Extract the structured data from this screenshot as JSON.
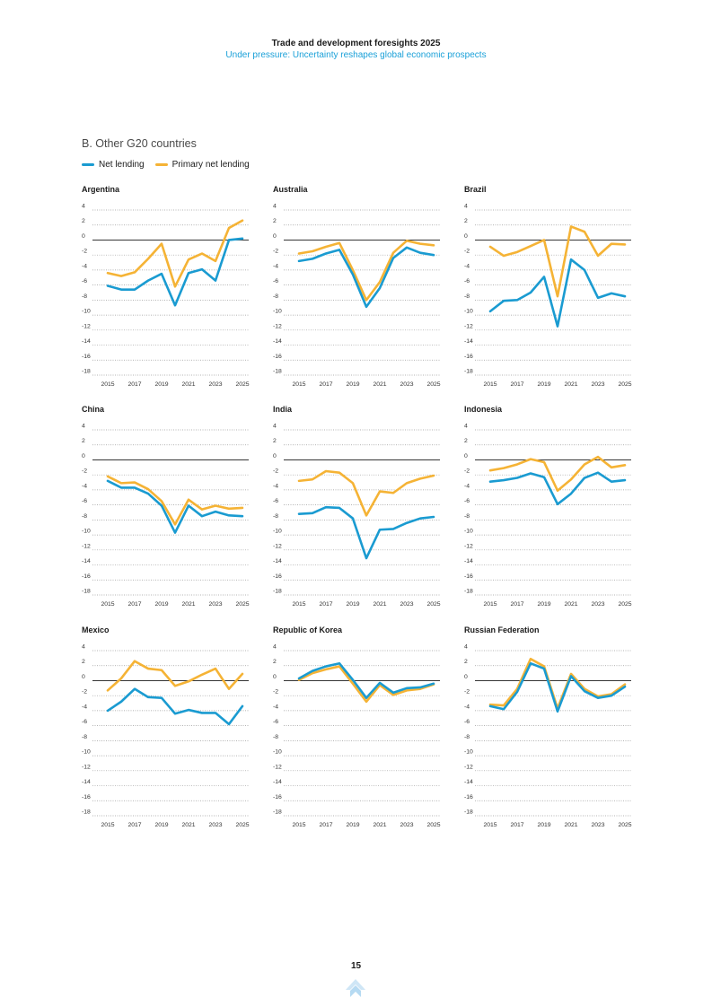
{
  "header": {
    "title": "Trade and development foresights 2025",
    "subtitle": "Under pressure: Uncertainty reshapes global economic prospects"
  },
  "section_title": "B. Other G20 countries",
  "legend": [
    {
      "label": "Net lending",
      "color": "#1a9bd1"
    },
    {
      "label": "Primary net lending",
      "color": "#f5b335"
    }
  ],
  "page_number": "15",
  "chart_data": [
    {
      "type": "line",
      "title": "Argentina",
      "x": [
        2015,
        2016,
        2017,
        2018,
        2019,
        2020,
        2021,
        2022,
        2023,
        2024,
        2025
      ],
      "x_tick_labels": [
        "2015",
        "2017",
        "2019",
        "2021",
        "2023",
        "2025"
      ],
      "y_tick_labels": [
        "4",
        "2",
        "0",
        "-2",
        "-4",
        "-6",
        "-8",
        "-10",
        "-12",
        "-14",
        "-16",
        "-18"
      ],
      "ylim": [
        -18,
        4
      ],
      "grid": true,
      "series": [
        {
          "name": "Net lending",
          "values": [
            -6.1,
            -6.6,
            -6.6,
            -5.4,
            -4.5,
            -8.7,
            -4.4,
            -3.9,
            -5.4,
            0.0,
            0.2
          ]
        },
        {
          "name": "Primary net lending",
          "values": [
            -4.4,
            -4.8,
            -4.3,
            -2.5,
            -0.5,
            -6.2,
            -2.6,
            -1.8,
            -2.8,
            1.6,
            2.6
          ]
        }
      ]
    },
    {
      "type": "line",
      "title": "Australia",
      "x": [
        2015,
        2016,
        2017,
        2018,
        2019,
        2020,
        2021,
        2022,
        2023,
        2024,
        2025
      ],
      "x_tick_labels": [
        "2015",
        "2017",
        "2019",
        "2021",
        "2023",
        "2025"
      ],
      "y_tick_labels": [
        "4",
        "2",
        "0",
        "-2",
        "-4",
        "-6",
        "-8",
        "-10",
        "-12",
        "-14",
        "-16",
        "-18"
      ],
      "ylim": [
        -18,
        4
      ],
      "grid": true,
      "series": [
        {
          "name": "Net lending",
          "values": [
            -2.8,
            -2.5,
            -1.8,
            -1.3,
            -4.6,
            -8.9,
            -6.4,
            -2.4,
            -1.0,
            -1.7,
            -2.0
          ]
        },
        {
          "name": "Primary net lending",
          "values": [
            -1.8,
            -1.5,
            -0.9,
            -0.4,
            -4.0,
            -8.0,
            -5.6,
            -1.7,
            -0.1,
            -0.5,
            -0.7
          ]
        }
      ]
    },
    {
      "type": "line",
      "title": "Brazil",
      "x": [
        2015,
        2016,
        2017,
        2018,
        2019,
        2020,
        2021,
        2022,
        2023,
        2024,
        2025
      ],
      "x_tick_labels": [
        "2015",
        "2017",
        "2019",
        "2021",
        "2023",
        "2025"
      ],
      "y_tick_labels": [
        "4",
        "2",
        "0",
        "-2",
        "-4",
        "-6",
        "-8",
        "-10",
        "-12",
        "-14",
        "-16",
        "-18"
      ],
      "ylim": [
        -18,
        4
      ],
      "grid": true,
      "series": [
        {
          "name": "Net lending",
          "values": [
            -9.5,
            -8.1,
            -8.0,
            -7.0,
            -4.9,
            -11.5,
            -2.6,
            -4.0,
            -7.7,
            -7.1,
            -7.5
          ]
        },
        {
          "name": "Primary net lending",
          "values": [
            -0.9,
            -2.1,
            -1.6,
            -0.8,
            0.0,
            -7.5,
            1.8,
            1.1,
            -2.1,
            -0.5,
            -0.6
          ]
        }
      ]
    },
    {
      "type": "line",
      "title": "China",
      "x": [
        2015,
        2016,
        2017,
        2018,
        2019,
        2020,
        2021,
        2022,
        2023,
        2024,
        2025
      ],
      "x_tick_labels": [
        "2015",
        "2017",
        "2019",
        "2021",
        "2023",
        "2025"
      ],
      "y_tick_labels": [
        "4",
        "2",
        "0",
        "-2",
        "-4",
        "-6",
        "-8",
        "-10",
        "-12",
        "-14",
        "-16",
        "-18"
      ],
      "ylim": [
        -18,
        4
      ],
      "grid": true,
      "series": [
        {
          "name": "Net lending",
          "values": [
            -2.8,
            -3.7,
            -3.7,
            -4.5,
            -6.1,
            -9.7,
            -6.1,
            -7.5,
            -6.9,
            -7.4,
            -7.5
          ]
        },
        {
          "name": "Primary net lending",
          "values": [
            -2.2,
            -3.1,
            -3.0,
            -3.9,
            -5.5,
            -8.6,
            -5.3,
            -6.6,
            -6.1,
            -6.5,
            -6.4
          ]
        }
      ]
    },
    {
      "type": "line",
      "title": "India",
      "x": [
        2015,
        2016,
        2017,
        2018,
        2019,
        2020,
        2021,
        2022,
        2023,
        2024,
        2025
      ],
      "x_tick_labels": [
        "2015",
        "2017",
        "2019",
        "2021",
        "2023",
        "2025"
      ],
      "y_tick_labels": [
        "4",
        "2",
        "0",
        "-2",
        "-4",
        "-6",
        "-8",
        "-10",
        "-12",
        "-14",
        "-16",
        "-18"
      ],
      "ylim": [
        -18,
        4
      ],
      "grid": true,
      "series": [
        {
          "name": "Net lending",
          "values": [
            -7.2,
            -7.1,
            -6.3,
            -6.4,
            -7.8,
            -13.1,
            -9.3,
            -9.2,
            -8.4,
            -7.8,
            -7.6
          ]
        },
        {
          "name": "Primary net lending",
          "values": [
            -2.8,
            -2.6,
            -1.5,
            -1.7,
            -3.1,
            -7.4,
            -4.2,
            -4.4,
            -3.1,
            -2.5,
            -2.1
          ]
        }
      ]
    },
    {
      "type": "line",
      "title": "Indonesia",
      "x": [
        2015,
        2016,
        2017,
        2018,
        2019,
        2020,
        2021,
        2022,
        2023,
        2024,
        2025
      ],
      "x_tick_labels": [
        "2015",
        "2017",
        "2019",
        "2021",
        "2023",
        "2025"
      ],
      "y_tick_labels": [
        "4",
        "2",
        "0",
        "-2",
        "-4",
        "-6",
        "-8",
        "-10",
        "-12",
        "-14",
        "-16",
        "-18"
      ],
      "ylim": [
        -18,
        4
      ],
      "grid": true,
      "series": [
        {
          "name": "Net lending",
          "values": [
            -2.9,
            -2.7,
            -2.4,
            -1.8,
            -2.3,
            -5.9,
            -4.5,
            -2.4,
            -1.7,
            -2.9,
            -2.7
          ]
        },
        {
          "name": "Primary net lending",
          "values": [
            -1.4,
            -1.1,
            -0.6,
            0.1,
            -0.3,
            -4.1,
            -2.6,
            -0.6,
            0.4,
            -1.0,
            -0.7
          ]
        }
      ]
    },
    {
      "type": "line",
      "title": "Mexico",
      "x": [
        2015,
        2016,
        2017,
        2018,
        2019,
        2020,
        2021,
        2022,
        2023,
        2024,
        2025
      ],
      "x_tick_labels": [
        "2015",
        "2017",
        "2019",
        "2021",
        "2023",
        "2025"
      ],
      "y_tick_labels": [
        "4",
        "2",
        "0",
        "-2",
        "-4",
        "-6",
        "-8",
        "-10",
        "-12",
        "-14",
        "-16",
        "-18"
      ],
      "ylim": [
        -18,
        4
      ],
      "grid": true,
      "series": [
        {
          "name": "Net lending",
          "values": [
            -4.0,
            -2.8,
            -1.1,
            -2.2,
            -2.3,
            -4.4,
            -3.9,
            -4.3,
            -4.3,
            -5.8,
            -3.4
          ]
        },
        {
          "name": "Primary net lending",
          "values": [
            -1.3,
            0.3,
            2.6,
            1.6,
            1.4,
            -0.7,
            -0.1,
            0.8,
            1.6,
            -1.1,
            0.9
          ]
        }
      ]
    },
    {
      "type": "line",
      "title": "Republic of Korea",
      "x": [
        2015,
        2016,
        2017,
        2018,
        2019,
        2020,
        2021,
        2022,
        2023,
        2024,
        2025
      ],
      "x_tick_labels": [
        "2015",
        "2017",
        "2019",
        "2021",
        "2023",
        "2025"
      ],
      "y_tick_labels": [
        "4",
        "2",
        "0",
        "-2",
        "-4",
        "-6",
        "-8",
        "-10",
        "-12",
        "-14",
        "-16",
        "-18"
      ],
      "ylim": [
        -18,
        4
      ],
      "grid": true,
      "series": [
        {
          "name": "Net lending",
          "values": [
            0.3,
            1.3,
            1.9,
            2.3,
            0.1,
            -2.3,
            -0.3,
            -1.6,
            -1.0,
            -0.9,
            -0.4
          ]
        },
        {
          "name": "Primary net lending",
          "values": [
            0.1,
            1.0,
            1.5,
            1.9,
            -0.4,
            -2.8,
            -0.6,
            -1.9,
            -1.3,
            -1.1,
            -0.5
          ]
        }
      ]
    },
    {
      "type": "line",
      "title": "Russian Federation",
      "x": [
        2015,
        2016,
        2017,
        2018,
        2019,
        2020,
        2021,
        2022,
        2023,
        2024,
        2025
      ],
      "x_tick_labels": [
        "2015",
        "2017",
        "2019",
        "2021",
        "2023",
        "2025"
      ],
      "y_tick_labels": [
        "4",
        "2",
        "0",
        "-2",
        "-4",
        "-6",
        "-8",
        "-10",
        "-12",
        "-14",
        "-16",
        "-18"
      ],
      "ylim": [
        -18,
        4
      ],
      "grid": true,
      "series": [
        {
          "name": "Net lending",
          "values": [
            -3.4,
            -3.8,
            -1.5,
            2.3,
            1.6,
            -4.1,
            0.6,
            -1.4,
            -2.3,
            -2.0,
            -0.8
          ]
        },
        {
          "name": "Primary net lending",
          "values": [
            -3.2,
            -3.3,
            -1.1,
            2.9,
            1.9,
            -3.7,
            0.9,
            -1.1,
            -2.1,
            -1.8,
            -0.5
          ]
        }
      ]
    }
  ]
}
